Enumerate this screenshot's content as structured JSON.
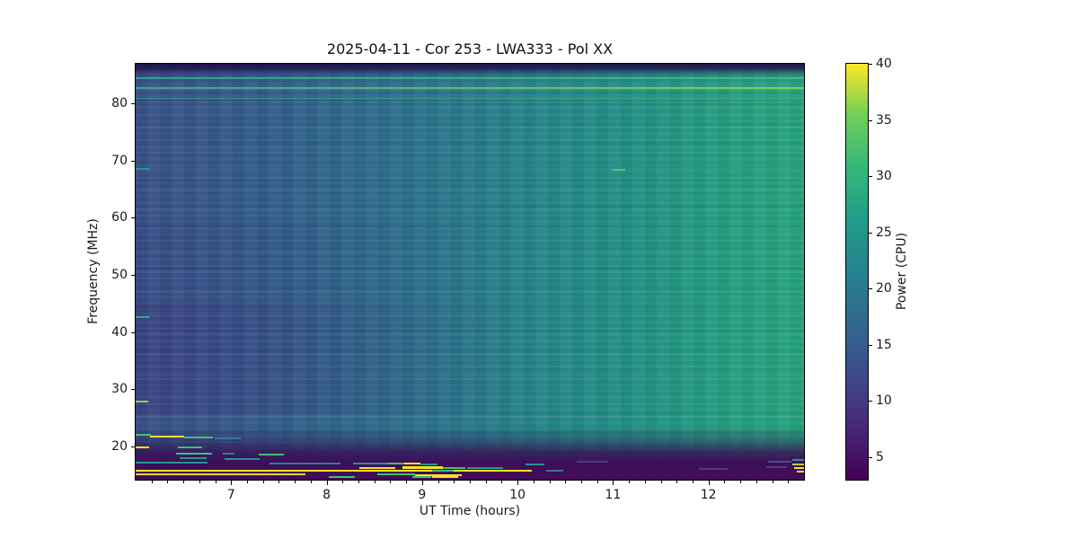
{
  "chart_data": {
    "type": "heatmap",
    "title": "2025-04-11 - Cor 253 - LWA333 - Pol XX",
    "xlabel": "UT Time (hours)",
    "ylabel": "Frequency (MHz)",
    "x_range_hours": [
      6.0,
      13.0
    ],
    "y_range_mhz": [
      14.2,
      86.9
    ],
    "x_major_ticks": [
      7,
      8,
      9,
      10,
      11,
      12
    ],
    "x_minor_tick_step_hours": 0.166667,
    "y_major_ticks": [
      20,
      30,
      40,
      50,
      60,
      70,
      80
    ],
    "grid": false,
    "colorbar": {
      "label": "Power (CPU)",
      "ticks": [
        5,
        10,
        15,
        20,
        25,
        30,
        35,
        40
      ],
      "vmin": 3,
      "vmax": 40,
      "colormap": "viridis"
    },
    "colormap_stops": [
      "#440154",
      "#482878",
      "#3e4a89",
      "#31688e",
      "#26828e",
      "#1f9e89",
      "#35b779",
      "#6ece58",
      "#fde725"
    ],
    "palette": {
      "rfi_yellow": "#f6e225",
      "rfi_gold": "#e8d437",
      "rfi_green": "#3fbf71",
      "rfi_bright_green": "#8ed64d",
      "rfi_teal": "#27948f",
      "rfi_dark_teal": "#2c7f96",
      "rfi_steel_blue": "#3f6fa0",
      "rfi_light_purple": "#4e3b7e",
      "background_left_blue": "#3a5389",
      "background_right_green": "#27a381",
      "band_dark_purple": "#430d54"
    },
    "description": "Dynamic spectrum: power increases from early (blue, ~6 UT) to later times (green-teal, ~13 UT); dark purple bands above ~85 MHz and below ~17 MHz; narrowband RFI streaks concentrated below 22 MHz between 6 and 10.3 UT.",
    "spectral_lines": [
      {
        "f": 84.4,
        "h": 2,
        "c1": "#2f9e8e",
        "c2": "#43b487"
      },
      {
        "f": 82.6,
        "h": 2,
        "c1": "#3aa48c",
        "c2": "#90ca5c"
      },
      {
        "f": 80.9,
        "h": 1,
        "c1": "#35908e",
        "c2": "#4fae85"
      }
    ],
    "rfi_segments": [
      {
        "t1": 6.0,
        "t2": 6.15,
        "f": 68.5,
        "color": "#27948f"
      },
      {
        "t1": 11.0,
        "t2": 11.13,
        "f": 68.4,
        "color": "#5fbe6b"
      },
      {
        "t1": 6.0,
        "t2": 6.14,
        "f": 42.6,
        "color": "#2faa8a"
      },
      {
        "t1": 6.0,
        "t2": 6.13,
        "f": 27.9,
        "color": "#8ed64d"
      },
      {
        "t1": 6.0,
        "t2": 6.16,
        "f": 22.0,
        "color": "#3fbf71"
      },
      {
        "t1": 6.15,
        "t2": 6.51,
        "f": 21.7,
        "color": "#f6e225"
      },
      {
        "t1": 6.51,
        "t2": 6.81,
        "f": 21.6,
        "color": "#3fbf71"
      },
      {
        "t1": 6.83,
        "t2": 7.1,
        "f": 21.5,
        "color": "#2c7f96"
      },
      {
        "t1": 6.0,
        "t2": 6.14,
        "f": 19.9,
        "color": "#f6e225"
      },
      {
        "t1": 6.44,
        "t2": 6.7,
        "f": 19.8,
        "color": "#3fbf71"
      },
      {
        "t1": 6.42,
        "t2": 6.8,
        "f": 18.8,
        "color": "#3fbf71"
      },
      {
        "t1": 6.91,
        "t2": 7.04,
        "f": 18.7,
        "color": "#2c7f96"
      },
      {
        "t1": 7.29,
        "t2": 7.55,
        "f": 18.6,
        "color": "#3fbf71"
      },
      {
        "t1": 6.46,
        "t2": 6.74,
        "f": 17.9,
        "color": "#27948f"
      },
      {
        "t1": 6.93,
        "t2": 7.3,
        "f": 17.8,
        "color": "#27948f"
      },
      {
        "t1": 6.0,
        "t2": 6.75,
        "f": 17.2,
        "color": "#27948f"
      },
      {
        "t1": 7.4,
        "t2": 8.15,
        "f": 17.1,
        "color": "#2c7f96"
      },
      {
        "t1": 8.28,
        "t2": 8.64,
        "f": 17.0,
        "color": "#27948f"
      },
      {
        "t1": 8.64,
        "t2": 8.81,
        "f": 17.0,
        "color": "#3fbf71"
      },
      {
        "t1": 8.81,
        "t2": 8.98,
        "f": 17.0,
        "color": "#f6e225"
      },
      {
        "t1": 8.98,
        "t2": 9.16,
        "f": 16.95,
        "color": "#27948f"
      },
      {
        "t1": 10.08,
        "t2": 10.28,
        "f": 16.8,
        "color": "#27948f"
      },
      {
        "t1": 8.34,
        "t2": 8.72,
        "f": 16.3,
        "color": "#f6e225"
      },
      {
        "t1": 8.79,
        "t2": 9.22,
        "f": 16.35,
        "color": "#f6e225",
        "h": 3
      },
      {
        "t1": 9.22,
        "t2": 9.45,
        "f": 16.3,
        "color": "#3fbf71"
      },
      {
        "t1": 9.47,
        "t2": 9.85,
        "f": 16.2,
        "color": "#27948f"
      },
      {
        "t1": 6.0,
        "t2": 10.15,
        "f": 15.75,
        "color": "#f6e225"
      },
      {
        "t1": 9.1,
        "t2": 9.33,
        "f": 15.7,
        "color": "#3fbf71"
      },
      {
        "t1": 10.3,
        "t2": 10.48,
        "f": 15.7,
        "color": "#3f6fa0"
      },
      {
        "t1": 6.0,
        "t2": 7.78,
        "f": 15.1,
        "color": "#e8d437"
      },
      {
        "t1": 8.53,
        "t2": 8.93,
        "f": 15.1,
        "color": "#3fbf71"
      },
      {
        "t1": 8.93,
        "t2": 9.42,
        "f": 15.05,
        "color": "#f6e225"
      },
      {
        "t1": 8.02,
        "t2": 8.3,
        "f": 14.7,
        "color": "#3fbf71"
      },
      {
        "t1": 8.9,
        "t2": 9.1,
        "f": 14.7,
        "color": "#3fbf71"
      },
      {
        "t1": 9.1,
        "t2": 9.38,
        "f": 14.65,
        "color": "#f6e225"
      },
      {
        "t1": 10.62,
        "t2": 10.95,
        "f": 17.3,
        "color": "#4e3b7e"
      },
      {
        "t1": 11.9,
        "t2": 12.2,
        "f": 16.1,
        "color": "#4e3b7e"
      },
      {
        "t1": 12.62,
        "t2": 12.87,
        "f": 17.3,
        "color": "#5a4790"
      },
      {
        "t1": 12.6,
        "t2": 12.82,
        "f": 16.4,
        "color": "#4e3b7e"
      },
      {
        "t1": 12.88,
        "t2": 13.0,
        "f": 17.7,
        "color": "#27948f"
      },
      {
        "t1": 12.88,
        "t2": 13.0,
        "f": 16.9,
        "color": "#b8d437"
      },
      {
        "t1": 12.9,
        "t2": 13.0,
        "f": 16.2,
        "color": "#f6e225"
      },
      {
        "t1": 12.92,
        "t2": 13.0,
        "f": 15.6,
        "color": "#e8d437"
      }
    ]
  }
}
